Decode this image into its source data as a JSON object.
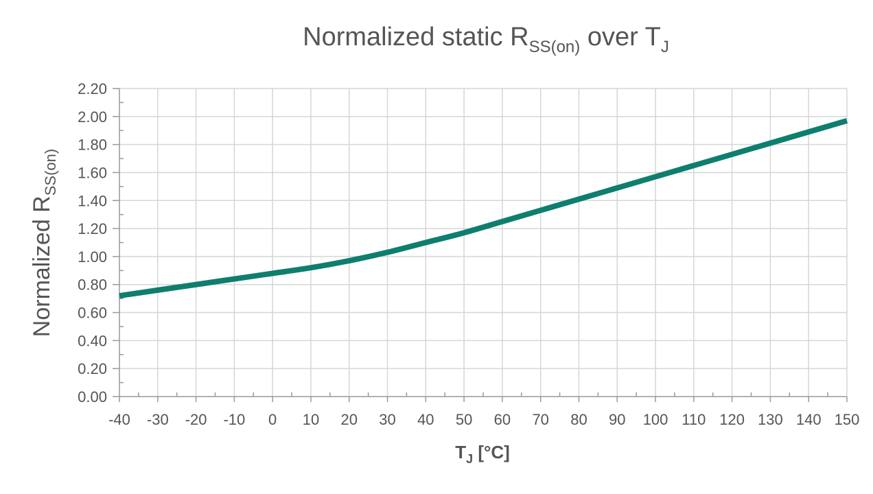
{
  "chart_data": {
    "type": "line",
    "title": {
      "main": "Normalized static R",
      "sub": "SS(on)",
      "rest": " over T",
      "sub2": "J"
    },
    "ylabel": {
      "main": "Normalized R",
      "sub": "SS(on)"
    },
    "xlabel": {
      "main": "T",
      "sub": "J",
      "rest": " [°C]"
    },
    "xlim": [
      -40,
      150
    ],
    "ylim": [
      0,
      2.2
    ],
    "xticks": [
      -40,
      -30,
      -20,
      -10,
      0,
      10,
      20,
      30,
      40,
      50,
      60,
      70,
      80,
      90,
      100,
      110,
      120,
      130,
      140,
      150
    ],
    "xtick_labels": [
      "-40",
      "-30",
      "-20",
      "-10",
      "0",
      "10",
      "20",
      "30",
      "40",
      "50",
      "60",
      "70",
      "80",
      "90",
      "100",
      "110",
      "120",
      "130",
      "140",
      "150"
    ],
    "yticks": [
      0,
      0.2,
      0.4,
      0.6,
      0.8,
      1.0,
      1.2,
      1.4,
      1.6,
      1.8,
      2.0,
      2.2
    ],
    "ytick_labels": [
      "0.00",
      "0.20",
      "0.40",
      "0.60",
      "0.80",
      "1.00",
      "1.20",
      "1.40",
      "1.60",
      "1.80",
      "2.00",
      "2.20"
    ],
    "grid": true,
    "series": [
      {
        "color": "#0e7e6e",
        "x": [
          -40,
          -30,
          -20,
          -10,
          0,
          10,
          20,
          30,
          40,
          50,
          60,
          70,
          80,
          90,
          100,
          110,
          120,
          130,
          140,
          150
        ],
        "y": [
          0.72,
          0.76,
          0.8,
          0.84,
          0.88,
          0.92,
          0.97,
          1.03,
          1.1,
          1.17,
          1.25,
          1.33,
          1.41,
          1.49,
          1.57,
          1.65,
          1.73,
          1.81,
          1.89,
          1.97
        ]
      }
    ]
  }
}
